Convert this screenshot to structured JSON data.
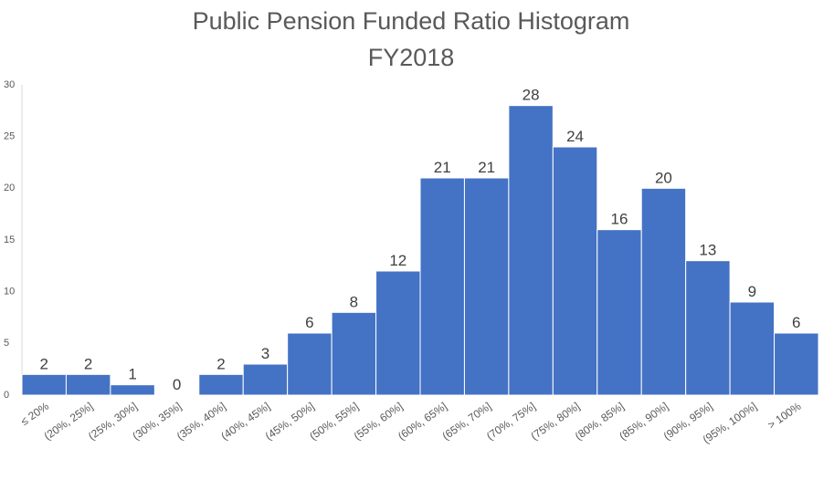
{
  "chart_data": {
    "type": "bar",
    "title": "Public Pension Funded Ratio Histogram",
    "subtitle": "FY2018",
    "categories": [
      "≤ 20%",
      "(20%, 25%]",
      "(25%, 30%]",
      "(30%, 35%]",
      "(35%, 40%]",
      "(40%, 45%]",
      "(45%, 50%]",
      "(50%, 55%]",
      "(55%, 60%]",
      "(60%, 65%]",
      "(65%, 70%]",
      "(70%, 75%]",
      "(75%, 80%]",
      "(80%, 85%]",
      "(85%, 90%]",
      "(90%, 95%]",
      "(95%, 100%]",
      "> 100%"
    ],
    "values": [
      2,
      2,
      1,
      0,
      2,
      3,
      6,
      8,
      12,
      21,
      21,
      28,
      24,
      16,
      20,
      13,
      9,
      6
    ],
    "color": "#4472c4",
    "ylim": [
      0,
      30
    ],
    "yticks": [
      0,
      5,
      10,
      15,
      20,
      25,
      30
    ],
    "grid": false
  }
}
